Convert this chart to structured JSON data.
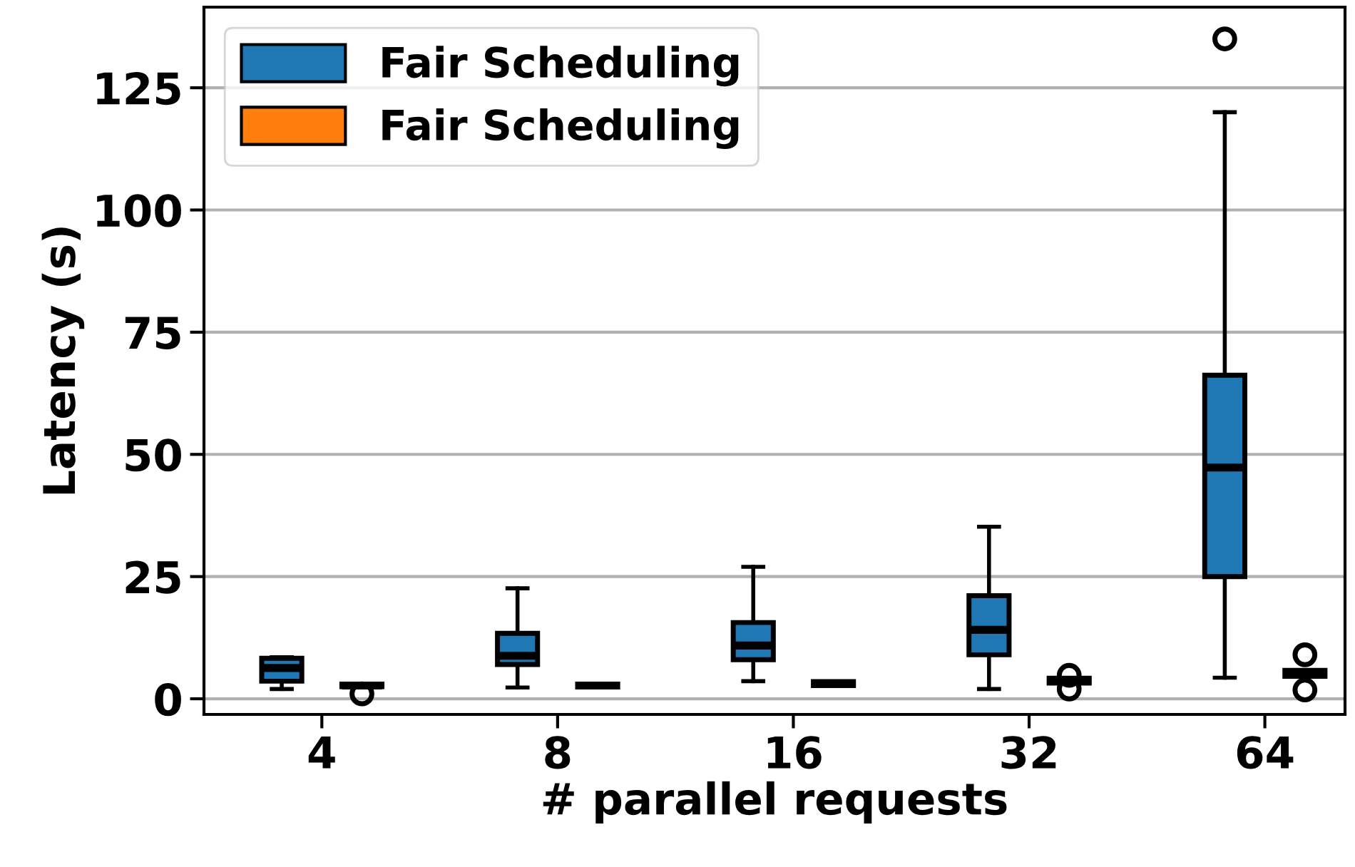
{
  "chart_data": {
    "type": "box",
    "xlabel": "# parallel requests",
    "ylabel": "Latency (s)",
    "categories": [
      "4",
      "8",
      "16",
      "32",
      "64"
    ],
    "ylim": [
      -3.2,
      141.5
    ],
    "yticks": [
      0,
      25,
      50,
      75,
      100,
      125
    ],
    "grid": "y",
    "legend": "top left",
    "series": [
      {
        "name": "Fair Scheduling",
        "color": "#1f77b4",
        "boxes": [
          {
            "low": 2.0,
            "q1": 3.6,
            "median": 6.3,
            "q3": 8.3,
            "high": 8.5
          },
          {
            "low": 2.3,
            "q1": 7.0,
            "median": 8.8,
            "q3": 13.4,
            "high": 22.6
          },
          {
            "low": 3.6,
            "q1": 8.0,
            "median": 10.9,
            "q3": 15.6,
            "high": 27.0
          },
          {
            "low": 2.0,
            "q1": 9.0,
            "median": 14.1,
            "q3": 21.1,
            "high": 35.2
          },
          {
            "low": 4.3,
            "q1": 25.0,
            "median": 47.3,
            "q3": 66.2,
            "high": 120,
            "outliers": [
              135
            ]
          }
        ]
      },
      {
        "name": "Fair Scheduling",
        "color": "#ff7f0e",
        "boxes": [
          {
            "low": 2.5,
            "q1": 2.5,
            "median": 2.7,
            "q3": 3.0,
            "high": 3.0,
            "outliers": [
              1.0
            ]
          },
          {
            "low": 2.4,
            "q1": 2.4,
            "median": 2.7,
            "q3": 3.0,
            "high": 3.0
          },
          {
            "low": 2.7,
            "q1": 2.7,
            "median": 3.1,
            "q3": 3.5,
            "high": 3.5
          },
          {
            "low": 3.2,
            "q1": 3.2,
            "median": 3.7,
            "q3": 4.2,
            "high": 4.2,
            "outliers": [
              2.0,
              4.8
            ]
          },
          {
            "low": 4.6,
            "q1": 4.6,
            "median": 5.2,
            "q3": 5.8,
            "high": 5.8,
            "outliers": [
              1.8,
              9.0
            ]
          }
        ]
      }
    ]
  }
}
